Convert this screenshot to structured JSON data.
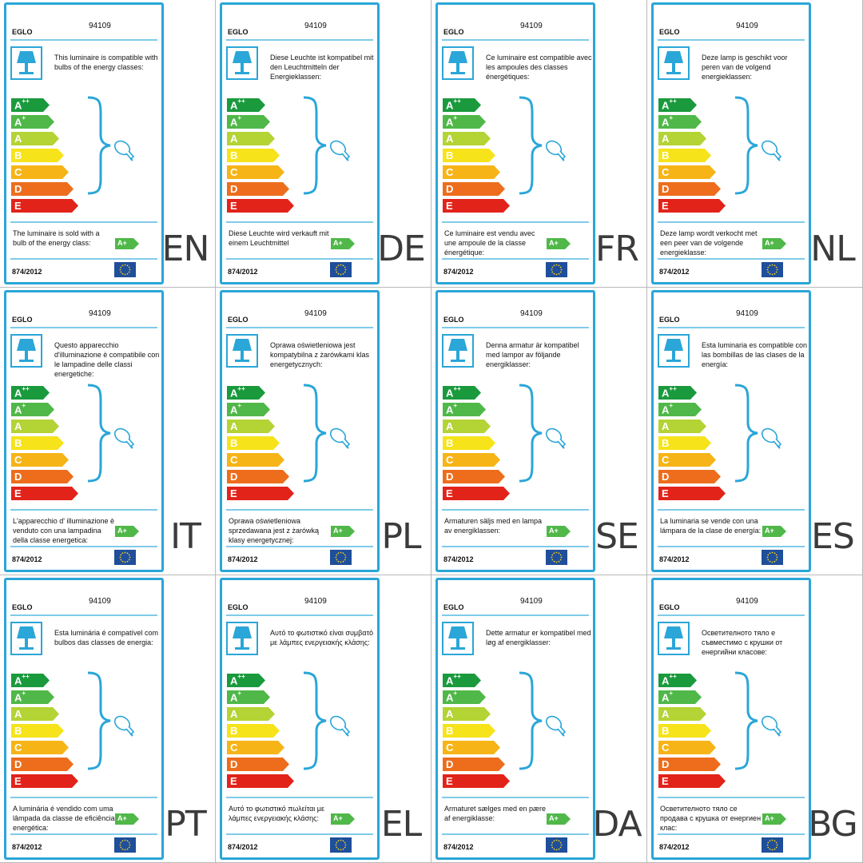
{
  "colors": {
    "label_border": "#2aa6d8",
    "aplusplus": "#1a9a3d",
    "aplus": "#4fb848",
    "a": "#b4d334",
    "b": "#f6e31a",
    "c": "#f6b417",
    "d": "#ed6d1c",
    "e": "#e2231a"
  },
  "bars": [
    {
      "letter": "A",
      "sup": "++",
      "color": "#1a9a3d"
    },
    {
      "letter": "A",
      "sup": "+",
      "color": "#4fb848"
    },
    {
      "letter": "A",
      "sup": "",
      "color": "#b4d334"
    },
    {
      "letter": "B",
      "sup": "",
      "color": "#f6e31a"
    },
    {
      "letter": "C",
      "sup": "",
      "color": "#f6b417"
    },
    {
      "letter": "D",
      "sup": "",
      "color": "#ed6d1c"
    },
    {
      "letter": "E",
      "sup": "",
      "color": "#e2231a"
    }
  ],
  "icons": {
    "lamp": "table-lamp-icon",
    "bulb": "light-bulb-icon",
    "brace": "curly-brace-icon",
    "eu_flag": "eu-flag-icon"
  },
  "labels": [
    {
      "lang": "EN",
      "brand": "EGLO",
      "code": "94109",
      "compat_text": "This luminaire is compatible with bulbs of the energy classes:",
      "sold_text": "The luminaire is sold with a bulb of the energy class:",
      "class_badge": "A+",
      "regulation": "874/2012"
    },
    {
      "lang": "DE",
      "brand": "EGLO",
      "code": "94109",
      "compat_text": "Diese Leuchte ist kompatibel mit den Leuchtmitteln der Energieklassen:",
      "sold_text": "Diese Leuchte wird verkauft mit einem Leuchtmittel",
      "class_badge": "A+",
      "regulation": "874/2012"
    },
    {
      "lang": "FR",
      "brand": "EGLO",
      "code": "94109",
      "compat_text": "Ce luminaire est compatible avec les ampoules des classes énergétiques:",
      "sold_text": "Ce luminaire est vendu avec une ampoule de la classe énergétique:",
      "class_badge": "A+",
      "regulation": "874/2012"
    },
    {
      "lang": "NL",
      "brand": "EGLO",
      "code": "94109",
      "compat_text": "Deze lamp is geschikt voor peren van de volgend energieklassen:",
      "sold_text": "Deze lamp wordt verkocht met een peer van de volgende energieklasse:",
      "class_badge": "A+",
      "regulation": "874/2012"
    },
    {
      "lang": "IT",
      "brand": "EGLO",
      "code": "94109",
      "compat_text": "Questo apparecchio d'illuminazione è compatibile con le lampadine delle classi energetiche:",
      "sold_text": "L'apparecchio d' illuminazione è venduto con una lampadina della classe energetica:",
      "class_badge": "A+",
      "regulation": "874/2012"
    },
    {
      "lang": "PL",
      "brand": "EGLO",
      "code": "94109",
      "compat_text": "Oprawa oświetleniowa jest kompatybilna z żarówkami klas energetycznych:",
      "sold_text": "Oprawa oświetleniowa sprzedawana jest z żarówką klasy energetycznej:",
      "class_badge": "A+",
      "regulation": "874/2012"
    },
    {
      "lang": "SE",
      "brand": "EGLO",
      "code": "94109",
      "compat_text": "Denna armatur är kompatibel med lampor av följande energiklasser:",
      "sold_text": "Armaturen säljs med en lampa av energiklassen:",
      "class_badge": "A+",
      "regulation": "874/2012"
    },
    {
      "lang": "ES",
      "brand": "EGLO",
      "code": "94109",
      "compat_text": "Esta luminaria es compatible con las bombillas de las clases de la energía:",
      "sold_text": "La luminaria se vende con una lámpara de la clase de energía:",
      "class_badge": "A+",
      "regulation": "874/2012"
    },
    {
      "lang": "PT",
      "brand": "EGLO",
      "code": "94109",
      "compat_text": "Esta luminária é compatível com bulbos das classes de energia:",
      "sold_text": "A luminária é vendido com uma lâmpada da classe de eficiência energética:",
      "class_badge": "A+",
      "regulation": "874/2012"
    },
    {
      "lang": "EL",
      "brand": "EGLO",
      "code": "94109",
      "compat_text": "Αυτό το φωτιστικό είναι συμβατό με λάμπες ενεργειακής κλάσης:",
      "sold_text": "Αυτό το φωτιστικό πωλείται με λάμπες ενεργειακής κλάσης:",
      "class_badge": "A+",
      "regulation": "874/2012"
    },
    {
      "lang": "DA",
      "brand": "EGLO",
      "code": "94109",
      "compat_text": "Dette armatur er kompatibel med løg af energiklasser:",
      "sold_text": "Armaturet sælges med en pære af energiklasse:",
      "class_badge": "A+",
      "regulation": "874/2012"
    },
    {
      "lang": "BG",
      "brand": "EGLO",
      "code": "94109",
      "compat_text": "Осветителното тяло е съвместимо с крушки от енергийни класове:",
      "sold_text": "Осветителното тяло се продава с крушка от енергиен клас:",
      "class_badge": "A+",
      "regulation": "874/2012"
    }
  ]
}
